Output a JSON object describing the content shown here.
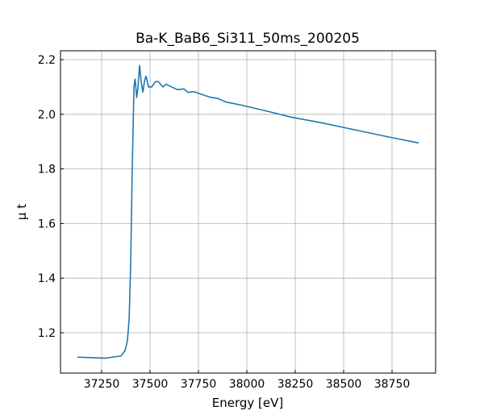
{
  "chart_data": {
    "type": "line",
    "title": "Ba-K_BaB6_Si311_50ms_200205",
    "x_label": "Energy [eV]",
    "y_label": "μ t",
    "x": [
      37125,
      37267,
      37350,
      37371,
      37383,
      37392,
      37400,
      37408,
      37417,
      37423,
      37431,
      37438,
      37446,
      37454,
      37463,
      37471,
      37479,
      37492,
      37508,
      37529,
      37542,
      37567,
      37583,
      37612,
      37642,
      37675,
      37696,
      37725,
      37758,
      37808,
      37850,
      37892,
      37975,
      38142,
      38225,
      38392,
      38558,
      38725,
      38888
    ],
    "series": [
      {
        "color": "#1f77b4",
        "values": [
          1.111,
          1.107,
          1.115,
          1.135,
          1.17,
          1.25,
          1.45,
          1.8,
          2.1,
          2.13,
          2.06,
          2.1,
          2.18,
          2.12,
          2.08,
          2.12,
          2.14,
          2.1,
          2.1,
          2.12,
          2.12,
          2.1,
          2.11,
          2.1,
          2.09,
          2.093,
          2.08,
          2.083,
          2.075,
          2.063,
          2.058,
          2.045,
          2.033,
          2.005,
          1.99,
          1.968,
          1.943,
          1.918,
          1.895
        ]
      }
    ],
    "xlim": [
      37037.5,
      38975
    ],
    "xticks": [
      37250,
      37500,
      37750,
      38000,
      38250,
      38500,
      38750
    ],
    "ylim": [
      1.0525,
      2.2325
    ],
    "yticks": [
      1.2,
      1.4,
      1.6,
      1.8,
      {
        "value": 2,
        "label": "2.0"
      },
      2.2
    ],
    "grid": true
  }
}
